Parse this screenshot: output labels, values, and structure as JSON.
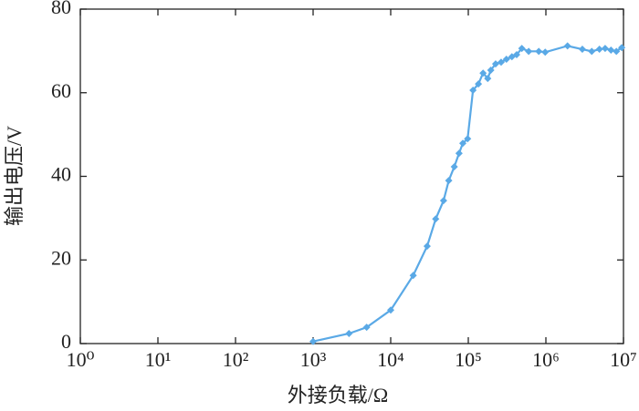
{
  "chart_data": {
    "type": "line",
    "x_label": "外接负载/Ω",
    "y_label": "输出电压/V",
    "log_x": true,
    "xlim": [
      1,
      10000000
    ],
    "xticks": [
      {
        "value": 1,
        "label": "10⁰"
      },
      {
        "value": 10,
        "label": "10¹"
      },
      {
        "value": 100,
        "label": "10²"
      },
      {
        "value": 1000,
        "label": "10³"
      },
      {
        "value": 10000,
        "label": "10⁴"
      },
      {
        "value": 100000,
        "label": "10⁵"
      },
      {
        "value": 1000000,
        "label": "10⁶"
      },
      {
        "value": 10000000,
        "label": "10⁷"
      }
    ],
    "ylim": [
      0,
      80
    ],
    "yticks": [
      0,
      20,
      40,
      60,
      80
    ],
    "x": [
      1000,
      2900,
      4900,
      10000,
      19500,
      29500,
      38000,
      48000,
      56000,
      66000,
      76000,
      85000,
      98000,
      115000,
      135000,
      155000,
      178000,
      195000,
      225000,
      265000,
      310000,
      365000,
      420000,
      490000,
      600000,
      810000,
      980000,
      1900000,
      2950000,
      3900000,
      4900000,
      5800000,
      6900000,
      8100000,
      9500000
    ],
    "series": [
      {
        "color": "#5aa9e6",
        "values": [
          0.5,
          2.4,
          3.9,
          8,
          16.3,
          23.3,
          29.8,
          34.2,
          39,
          42.3,
          45.5,
          47.9,
          49,
          60.6,
          62.1,
          64.7,
          63.4,
          65.4,
          66.9,
          67.3,
          68,
          68.6,
          69.1,
          70.6,
          69.9,
          69.9,
          69.7,
          71.2,
          70.4,
          69.9,
          70.4,
          70.6,
          70.2,
          69.9,
          70.8
        ]
      }
    ]
  }
}
